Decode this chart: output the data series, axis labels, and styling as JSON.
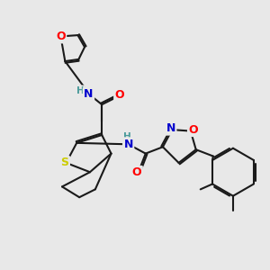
{
  "bg_color": "#e8e8e8",
  "bond_color": "#1a1a1a",
  "bond_width": 1.5,
  "dbo": 0.06,
  "atom_colors": {
    "O": "#ff0000",
    "N": "#0000cd",
    "S": "#cccc00",
    "H": "#4a9a9a",
    "C": "#1a1a1a"
  },
  "fs": 9.0,
  "fs2": 7.5
}
